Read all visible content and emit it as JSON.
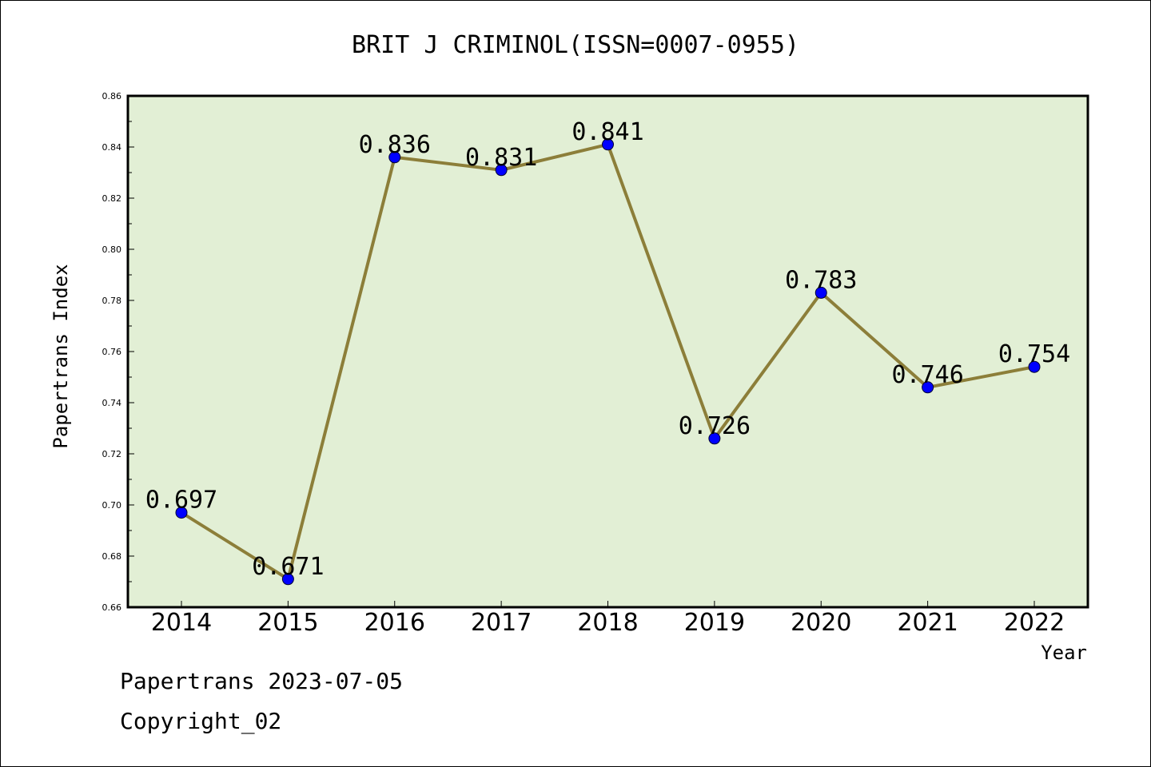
{
  "chart_data": {
    "type": "line",
    "title": "BRIT J CRIMINOL(ISSN=0007-0955)",
    "xlabel": "Year",
    "ylabel": "Papertrans Index",
    "categories": [
      "2014",
      "2015",
      "2016",
      "2017",
      "2018",
      "2019",
      "2020",
      "2021",
      "2022"
    ],
    "values": [
      0.697,
      0.671,
      0.836,
      0.831,
      0.841,
      0.726,
      0.783,
      0.746,
      0.754
    ],
    "data_labels": [
      "0.697",
      "0.671",
      "0.836",
      "0.831",
      "0.841",
      "0.726",
      "0.783",
      "0.746",
      "0.754"
    ],
    "ylim": [
      0.66,
      0.86
    ],
    "yticks": [
      "0.66",
      "0.68",
      "0.70",
      "0.72",
      "0.74",
      "0.76",
      "0.78",
      "0.80",
      "0.82",
      "0.84",
      "0.86"
    ],
    "grid": false,
    "legend": "none",
    "colors": {
      "plot_background": "#e2efd5",
      "line": "#8c7e39",
      "marker": "#0000ff"
    }
  },
  "footer": {
    "date_line": "Papertrans 2023-07-05",
    "copyright": "Copyright_02"
  }
}
